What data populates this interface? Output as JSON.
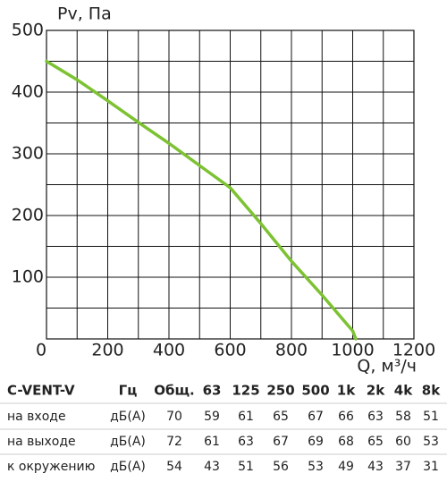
{
  "chart_data": {
    "type": "line",
    "title": "Pv, Па",
    "x_label": "Q, м³/ч",
    "x": [
      0,
      100,
      200,
      300,
      400,
      500,
      600,
      700,
      800,
      900,
      1000,
      1010
    ],
    "series": [
      {
        "color": "#7cc232",
        "values": [
          450,
          420,
          386,
          351,
          317,
          281,
          245,
          187,
          126,
          71,
          13,
          0
        ]
      }
    ],
    "xlim": [
      0,
      1200
    ],
    "xticks": [
      0,
      200,
      400,
      600,
      800,
      1000,
      1200
    ],
    "xminorticks": [
      100,
      300,
      500,
      700,
      900,
      1100
    ],
    "ylim": [
      0,
      500
    ],
    "yticks": [
      100,
      200,
      300,
      400,
      500
    ],
    "yminorticks": [
      50,
      150,
      250,
      350,
      450
    ],
    "grid": true
  },
  "table": {
    "header": [
      "C-VENT-V",
      "Гц",
      "Общ.",
      "63",
      "125",
      "250",
      "500",
      "1k",
      "2k",
      "4k",
      "8k"
    ],
    "rows": [
      [
        "на входе",
        "дБ(А)",
        70,
        59,
        61,
        65,
        67,
        66,
        63,
        58,
        51
      ],
      [
        "на выходе",
        "дБ(А)",
        72,
        61,
        63,
        67,
        69,
        68,
        65,
        60,
        53
      ],
      [
        "к окружению",
        "дБ(А)",
        54,
        43,
        51,
        56,
        53,
        49,
        43,
        37,
        31
      ]
    ]
  }
}
